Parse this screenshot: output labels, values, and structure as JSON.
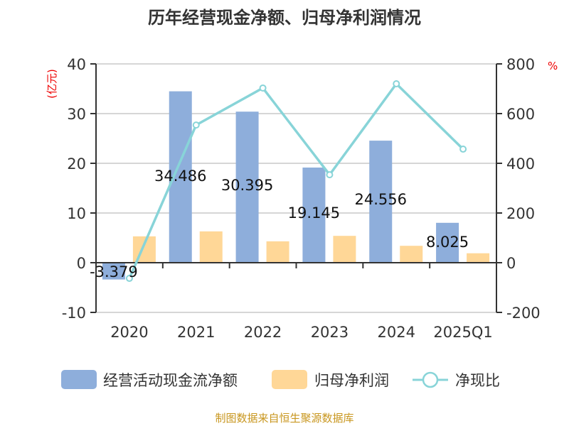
{
  "chart_data": {
    "type": "bar",
    "title": "历年经营现金净额、归母净利润情况",
    "categories": [
      "2020",
      "2021",
      "2022",
      "2023",
      "2024",
      "2025Q1"
    ],
    "left_axis": {
      "label": "(亿元)",
      "ylim": [
        -10,
        40
      ],
      "ticks": [
        "-10",
        "0",
        "10",
        "20",
        "30",
        "40"
      ]
    },
    "right_axis": {
      "label": "%",
      "ylim": [
        -200,
        800
      ],
      "ticks": [
        "-200",
        "0",
        "200",
        "400",
        "600",
        "800"
      ]
    },
    "grid": true,
    "legend_position": "bottom",
    "series": [
      {
        "name": "经营活动现金流净额",
        "type": "bar",
        "axis": "left",
        "color": "#8eaedb",
        "values": [
          -3.379,
          34.486,
          30.395,
          19.145,
          24.556,
          8.025
        ],
        "labels": [
          "-3.379",
          "34.486",
          "30.395",
          "19.145",
          "24.556",
          "8.025"
        ]
      },
      {
        "name": "归母净利润",
        "type": "bar",
        "axis": "left",
        "color": "#ffd797",
        "values": [
          5.3,
          6.3,
          4.3,
          5.4,
          3.4,
          1.9
        ]
      },
      {
        "name": "净现比",
        "type": "line",
        "axis": "right",
        "color": "#88d4d8",
        "values": [
          -63,
          554,
          703,
          354,
          720,
          457
        ]
      }
    ]
  },
  "footer": "制图数据来自恒生聚源数据库"
}
